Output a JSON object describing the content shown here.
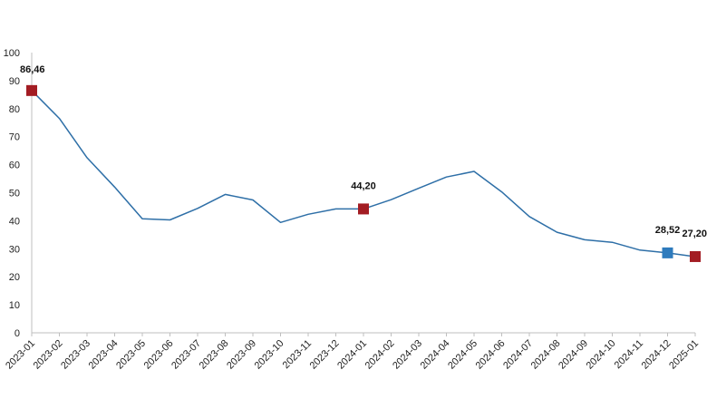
{
  "chart_data": {
    "type": "line",
    "title": "",
    "xlabel": "",
    "ylabel": "",
    "ylim": [
      0,
      100
    ],
    "yticks": [
      0,
      10,
      20,
      30,
      40,
      50,
      60,
      70,
      80,
      90,
      100
    ],
    "grid": false,
    "categories": [
      "2023-01",
      "2023-02",
      "2023-03",
      "2023-04",
      "2023-05",
      "2023-06",
      "2023-07",
      "2023-08",
      "2023-09",
      "2023-10",
      "2023-11",
      "2023-12",
      "2024-01",
      "2024-02",
      "2024-03",
      "2024-04",
      "2024-05",
      "2024-06",
      "2024-07",
      "2024-08",
      "2024-09",
      "2024-10",
      "2024-11",
      "2024-12",
      "2025-01"
    ],
    "series": [
      {
        "values": [
          86.46,
          76.5,
          62.5,
          52.0,
          40.7,
          40.3,
          44.4,
          49.4,
          47.4,
          39.4,
          42.3,
          44.2,
          44.2,
          47.5,
          51.6,
          55.6,
          57.6,
          50.3,
          41.5,
          35.9,
          33.2,
          32.3,
          29.5,
          28.52,
          27.2
        ],
        "color": "#2e6fa7"
      }
    ],
    "annotations": [
      {
        "index": 0,
        "label": "86,46",
        "marker_color": "#a31c23"
      },
      {
        "index": 12,
        "label": "44,20",
        "marker_color": "#a31c23"
      },
      {
        "index": 23,
        "label": "28,52",
        "marker_color": "#2e7bbd"
      },
      {
        "index": 24,
        "label": "27,20",
        "marker_color": "#a31c23"
      }
    ],
    "colors": {
      "axis": "#bfbfbf",
      "line": "#2e6fa7"
    }
  }
}
